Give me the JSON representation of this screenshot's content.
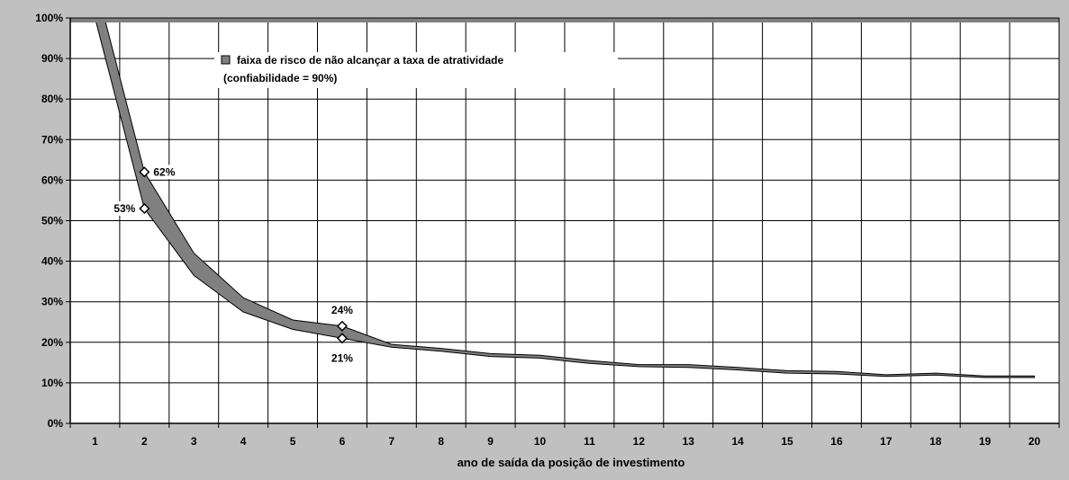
{
  "chart_data": {
    "type": "area",
    "title": "",
    "xlabel": "ano de saída da posição de investimento",
    "ylabel": "",
    "x": [
      1,
      2,
      3,
      4,
      5,
      6,
      7,
      8,
      9,
      10,
      11,
      12,
      13,
      14,
      15,
      16,
      17,
      18,
      19,
      20
    ],
    "series": [
      {
        "name": "upper",
        "values": [
          1.09,
          0.62,
          0.42,
          0.31,
          0.255,
          0.24,
          0.195,
          0.185,
          0.172,
          0.168,
          0.155,
          0.145,
          0.145,
          0.138,
          0.13,
          0.128,
          0.12,
          0.124,
          0.117,
          0.117
        ]
      },
      {
        "name": "lower",
        "values": [
          1.0,
          0.53,
          0.365,
          0.275,
          0.232,
          0.21,
          0.188,
          0.178,
          0.165,
          0.161,
          0.148,
          0.14,
          0.138,
          0.132,
          0.124,
          0.122,
          0.116,
          0.119,
          0.113,
          0.113
        ]
      }
    ],
    "ylim": [
      0,
      1
    ],
    "yticks": [
      "0%",
      "10%",
      "20%",
      "30%",
      "40%",
      "50%",
      "60%",
      "70%",
      "80%",
      "90%",
      "100%"
    ],
    "xticks": [
      "1",
      "2",
      "3",
      "4",
      "5",
      "6",
      "7",
      "8",
      "9",
      "10",
      "11",
      "12",
      "13",
      "14",
      "15",
      "16",
      "17",
      "18",
      "19",
      "20"
    ],
    "grid": true,
    "legend": {
      "position": "top-center",
      "entries": [
        "faixa de risco de não alcançar a taxa de atratividade"
      ],
      "note": "(confiabilidade = 90%)"
    },
    "annotations": [
      {
        "x": 2,
        "y": 0.62,
        "label": "62%",
        "side": "right"
      },
      {
        "x": 2,
        "y": 0.53,
        "label": "53%",
        "side": "left"
      },
      {
        "x": 6,
        "y": 0.24,
        "label": "24%",
        "side": "above"
      },
      {
        "x": 6,
        "y": 0.21,
        "label": "21%",
        "side": "below"
      }
    ],
    "colors": {
      "band": "#808080",
      "plot_bg": "#ffffff",
      "frame_bg": "#c0c0c0",
      "grid": "#000000"
    }
  }
}
